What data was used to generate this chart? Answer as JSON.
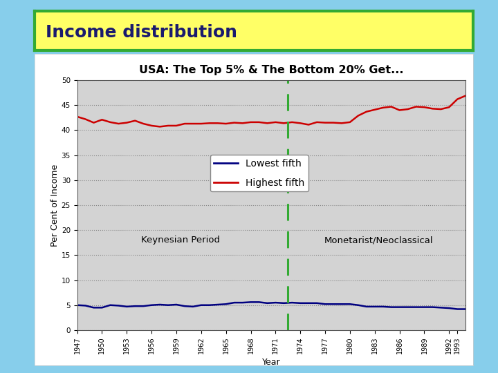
{
  "title": "Income distribution",
  "subtitle": "USA: The Top 5% & The Bottom 20% Get...",
  "xlabel": "Year",
  "ylabel": "Per Cent of Income",
  "background_color": "#87CEEB",
  "plot_bg_color": "#D3D3D3",
  "panel_bg_color": "#FFFFFF",
  "title_bg_color": "#FFFF66",
  "title_border_color": "#33AA33",
  "divider_year": 1972.5,
  "keynesian_label": "Keynesian Period",
  "monetarist_label": "Monetarist/Neoclassical",
  "years": [
    1947,
    1948,
    1949,
    1950,
    1951,
    1952,
    1953,
    1954,
    1955,
    1956,
    1957,
    1958,
    1959,
    1960,
    1961,
    1962,
    1963,
    1964,
    1965,
    1966,
    1967,
    1968,
    1969,
    1970,
    1971,
    1972,
    1973,
    1974,
    1975,
    1976,
    1977,
    1978,
    1979,
    1980,
    1981,
    1982,
    1983,
    1984,
    1985,
    1986,
    1987,
    1988,
    1989,
    1990,
    1991,
    1992,
    1993,
    1994
  ],
  "highest_fifth": [
    42.7,
    42.2,
    41.5,
    42.1,
    41.6,
    41.3,
    41.5,
    41.9,
    41.3,
    40.9,
    40.7,
    40.9,
    40.9,
    41.3,
    41.3,
    41.3,
    41.4,
    41.4,
    41.3,
    41.5,
    41.4,
    41.6,
    41.6,
    41.4,
    41.6,
    41.4,
    41.6,
    41.4,
    41.1,
    41.6,
    41.5,
    41.5,
    41.4,
    41.6,
    42.9,
    43.7,
    44.1,
    44.5,
    44.7,
    44.0,
    44.2,
    44.7,
    44.6,
    44.3,
    44.2,
    44.6,
    46.2,
    46.9
  ],
  "lowest_fifth": [
    5.0,
    4.9,
    4.5,
    4.5,
    5.0,
    4.9,
    4.7,
    4.8,
    4.8,
    5.0,
    5.1,
    5.0,
    5.1,
    4.8,
    4.7,
    5.0,
    5.0,
    5.1,
    5.2,
    5.5,
    5.5,
    5.6,
    5.6,
    5.4,
    5.5,
    5.4,
    5.5,
    5.4,
    5.4,
    5.4,
    5.2,
    5.2,
    5.2,
    5.2,
    5.0,
    4.7,
    4.7,
    4.7,
    4.6,
    4.6,
    4.6,
    4.6,
    4.6,
    4.6,
    4.5,
    4.4,
    4.2,
    4.2
  ],
  "highest_color": "#CC0000",
  "lowest_color": "#000080",
  "divider_color": "#33AA33",
  "ylim": [
    0,
    50
  ],
  "yticks": [
    0,
    5,
    10,
    15,
    20,
    25,
    30,
    35,
    40,
    45,
    50
  ],
  "xticks": [
    1947,
    1950,
    1953,
    1956,
    1959,
    1962,
    1965,
    1968,
    1971,
    1974,
    1977,
    1980,
    1983,
    1986,
    1989,
    1992,
    1993
  ]
}
